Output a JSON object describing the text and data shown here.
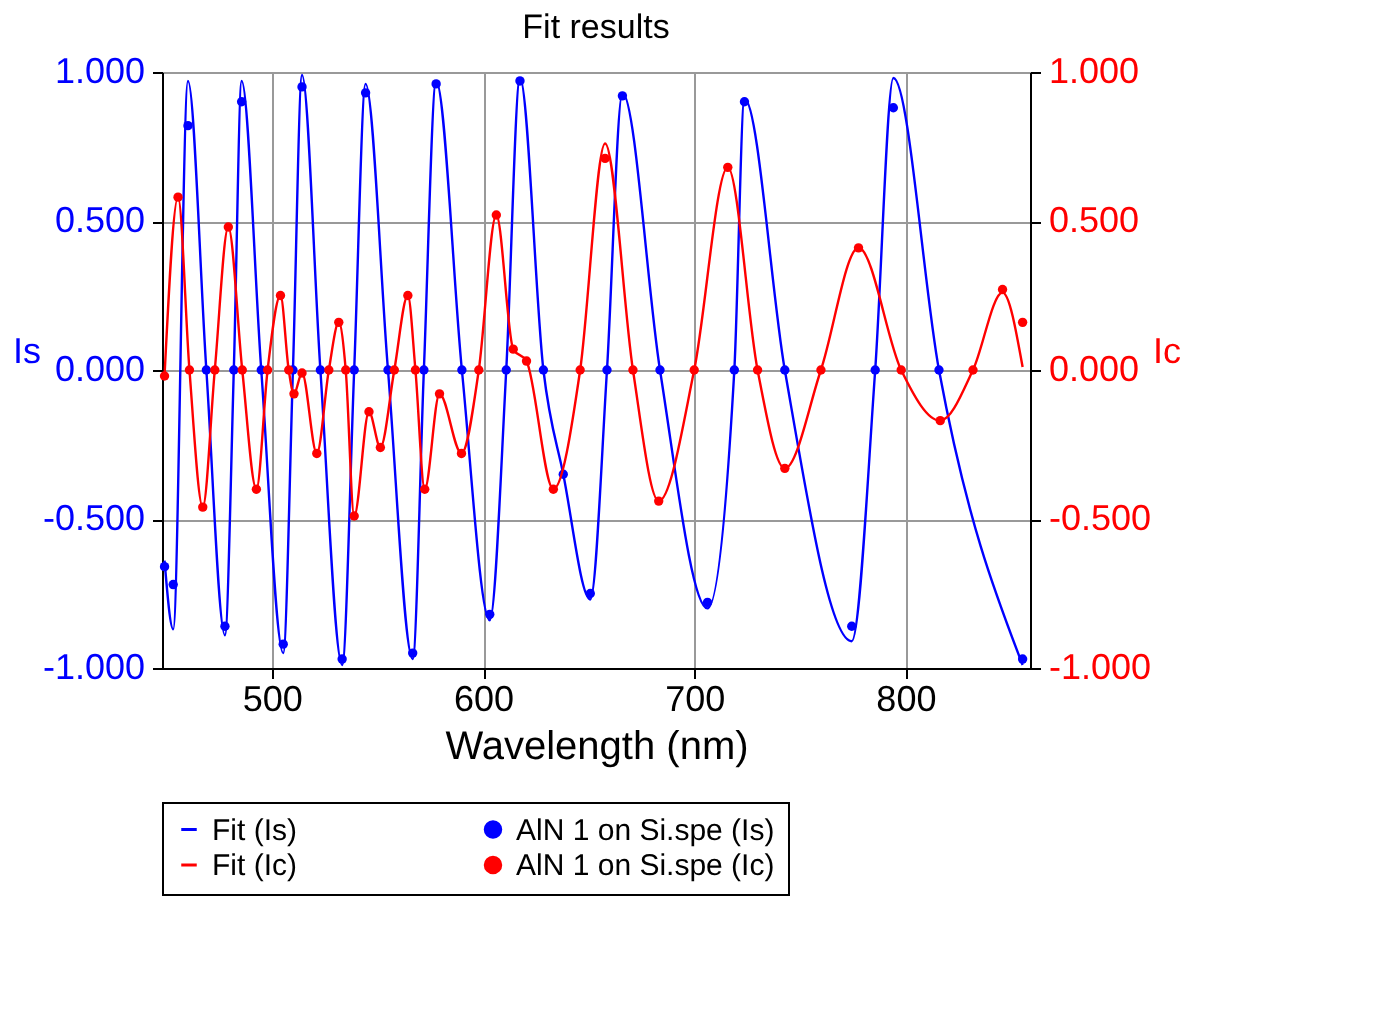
{
  "chart_data": {
    "type": "line",
    "title": "Fit results",
    "xlabel": "Wavelength (nm)",
    "ylabel": "Is",
    "y2label": "Ic",
    "xlim": [
      448,
      859
    ],
    "xticks": [
      500,
      600,
      700,
      800
    ],
    "ylim": [
      -1,
      1
    ],
    "yticks": [
      {
        "value": -1,
        "label": "-1.000"
      },
      {
        "value": -0.5,
        "label": "-0.500"
      },
      {
        "value": 0,
        "label": "0.000"
      },
      {
        "value": 0.5,
        "label": "0.500"
      },
      {
        "value": 1,
        "label": "1.000"
      }
    ],
    "y2lim": [
      -1,
      1
    ],
    "y2ticks": [
      {
        "value": -1,
        "label": "-1.000"
      },
      {
        "value": -0.5,
        "label": "-0.500"
      },
      {
        "value": 0,
        "label": "0.000"
      },
      {
        "value": 0.5,
        "label": "0.500"
      },
      {
        "value": 1,
        "label": "1.000"
      }
    ],
    "grid": true,
    "legend": "bottom",
    "line_style": "solid",
    "series": [
      {
        "name": "Fit (Is)",
        "color": "#0000ff",
        "x": [
          449.2,
          453.3,
          460.3,
          469,
          477.8,
          482,
          485.7,
          495,
          505.4,
          510,
          514.3,
          523,
          533.3,
          539,
          544.4,
          555,
          566.7,
          572,
          577.8,
          590,
          603.2,
          611,
          617.5,
          628.6,
          638,
          650.8,
          658.7,
          666,
          683.8,
          706.3,
          719,
          723.8,
          742.9,
          774.6,
          785.7,
          794.3,
          815.9,
          855.5
        ],
        "values": [
          -0.64,
          -0.87,
          0.97,
          0,
          -0.89,
          0,
          0.97,
          0,
          -0.95,
          0,
          0.99,
          0,
          -0.99,
          0,
          0.96,
          0,
          -0.97,
          0,
          0.97,
          0,
          -0.84,
          0,
          0.98,
          0,
          -0.35,
          -0.77,
          0,
          0.93,
          0,
          -0.8,
          0,
          0.91,
          0,
          -0.91,
          0,
          0.98,
          0,
          -0.99
        ]
      },
      {
        "name": "AlN 1 on Si.spe (Is)",
        "type": "scatter",
        "marker": "circle",
        "color": "#0000ff",
        "x": [
          449.2,
          453.3,
          460.3,
          469,
          477.8,
          482,
          485.7,
          495,
          505.4,
          510,
          514.3,
          523,
          533.3,
          539,
          544.4,
          555,
          566.7,
          572,
          577.8,
          590,
          603.2,
          611,
          617.5,
          628.6,
          638,
          650.8,
          658.7,
          666,
          683.8,
          706.3,
          719,
          723.8,
          742.9,
          774.6,
          785.7,
          794.3,
          815.9,
          855.5
        ],
        "values": [
          -0.66,
          -0.72,
          0.82,
          0,
          -0.86,
          0,
          0.9,
          0,
          -0.92,
          0,
          0.95,
          0,
          -0.97,
          0,
          0.93,
          0,
          -0.95,
          0,
          0.96,
          0,
          -0.82,
          0,
          0.97,
          0,
          -0.35,
          -0.75,
          0,
          0.92,
          0,
          -0.78,
          0,
          0.9,
          0,
          -0.86,
          0,
          0.88,
          0,
          -0.97
        ]
      },
      {
        "name": "Fit (Ic)",
        "axis": "y2",
        "color": "#ff0000",
        "x": [
          449.2,
          455.6,
          461,
          467.3,
          473,
          479.4,
          486,
          492.7,
          498,
          504.1,
          508,
          510.5,
          514.3,
          521.3,
          527,
          531.7,
          535,
          539,
          546,
          551.4,
          558,
          564.4,
          568,
          572.4,
          579.4,
          589.8,
          598,
          606.3,
          614.3,
          620.6,
          633.3,
          646,
          657.8,
          671,
          683.2,
          700,
          715.9,
          730,
          742.9,
          760,
          777.8,
          798,
          816.5,
          832,
          846,
          855.5
        ],
        "values": [
          -0.02,
          0.58,
          0,
          -0.46,
          0,
          0.48,
          0,
          -0.4,
          0,
          0.25,
          0,
          -0.08,
          -0.01,
          -0.28,
          0,
          0.16,
          0,
          -0.49,
          -0.14,
          -0.26,
          0,
          0.25,
          0,
          -0.4,
          -0.08,
          -0.28,
          0,
          0.52,
          0.07,
          0.03,
          -0.4,
          0,
          0.76,
          0,
          -0.44,
          0,
          0.68,
          0,
          -0.33,
          0,
          0.41,
          0,
          -0.17,
          0,
          0.26,
          0.01
        ]
      },
      {
        "name": "AlN 1 on Si.spe (Ic)",
        "type": "scatter",
        "marker": "circle",
        "axis": "y2",
        "color": "#ff0000",
        "x": [
          449.2,
          455.6,
          461,
          467.3,
          473,
          479.4,
          486,
          492.7,
          498,
          504.1,
          508,
          510.5,
          514.3,
          521.3,
          527,
          531.7,
          535,
          539,
          546,
          551.4,
          558,
          564.4,
          568,
          572.4,
          579.4,
          589.8,
          598,
          606.3,
          614.3,
          620.6,
          633.3,
          646,
          657.8,
          671,
          683.2,
          700,
          715.9,
          730,
          742.9,
          760,
          777.8,
          798,
          816.5,
          832,
          846,
          855.5
        ],
        "values": [
          -0.02,
          0.58,
          0,
          -0.46,
          0,
          0.48,
          0,
          -0.4,
          0,
          0.25,
          0,
          -0.08,
          -0.01,
          -0.28,
          0,
          0.16,
          0,
          -0.49,
          -0.14,
          -0.26,
          0,
          0.25,
          0,
          -0.4,
          -0.08,
          -0.28,
          0,
          0.52,
          0.07,
          0.03,
          -0.4,
          0,
          0.71,
          0,
          -0.44,
          0,
          0.68,
          0,
          -0.33,
          0,
          0.41,
          0,
          -0.17,
          0,
          0.27,
          0.16
        ]
      }
    ]
  }
}
